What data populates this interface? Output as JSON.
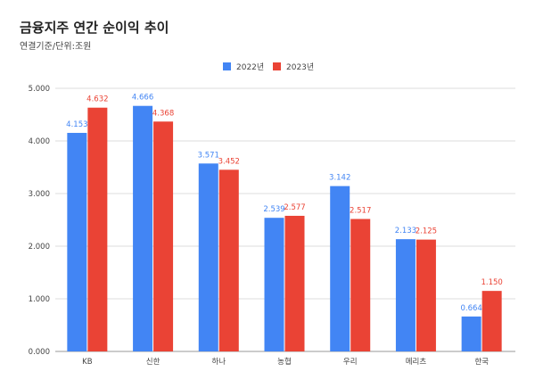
{
  "chart_data": {
    "type": "bar",
    "title": "금융지주 연간 순이익 추이",
    "subtitle": "연결기준/단위:조원",
    "categories": [
      "KB",
      "신한",
      "하나",
      "농협",
      "우리",
      "메리츠",
      "한국"
    ],
    "series": [
      {
        "name": "2022년",
        "color": "#4285f4",
        "values": [
          4.153,
          4.666,
          3.571,
          2.539,
          3.142,
          2.133,
          0.664
        ],
        "labels": [
          "4.153",
          "4.666",
          "3.571",
          "2.539",
          "3.142",
          "2.133",
          "0.664"
        ]
      },
      {
        "name": "2023년",
        "color": "#ea4335",
        "values": [
          4.632,
          4.368,
          3.452,
          2.577,
          2.517,
          2.125,
          1.15
        ],
        "labels": [
          "4.632",
          "4.368",
          "3.452",
          "2.577",
          "2.517",
          "2.125",
          "1.150"
        ]
      }
    ],
    "ylim": [
      0,
      5
    ],
    "yticks": [
      "0.000",
      "1.000",
      "2.000",
      "3.000",
      "4.000",
      "5.000"
    ],
    "grid": true,
    "legend": "top"
  }
}
